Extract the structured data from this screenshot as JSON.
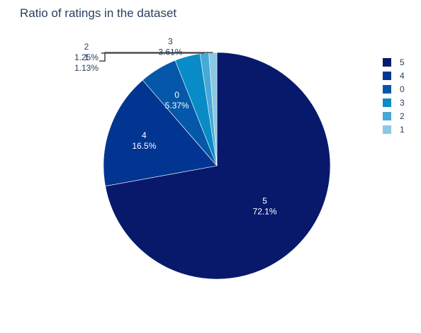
{
  "chart_data": {
    "type": "pie",
    "title": "Ratio of ratings in the dataset",
    "categories": [
      "5",
      "4",
      "0",
      "3",
      "2",
      "1"
    ],
    "values": [
      72.1,
      16.5,
      5.37,
      3.61,
      1.25,
      1.13
    ],
    "value_labels": [
      "72.1%",
      "16.5%",
      "5.37%",
      "3.61%",
      "1.25%",
      "1.13%"
    ],
    "colors": [
      "#08196b",
      "#023592",
      "#0457a9",
      "#088bc6",
      "#47a9d6",
      "#8ac8e4"
    ],
    "legend_placement": "top-right",
    "direction": "clockwise",
    "start": "top"
  }
}
